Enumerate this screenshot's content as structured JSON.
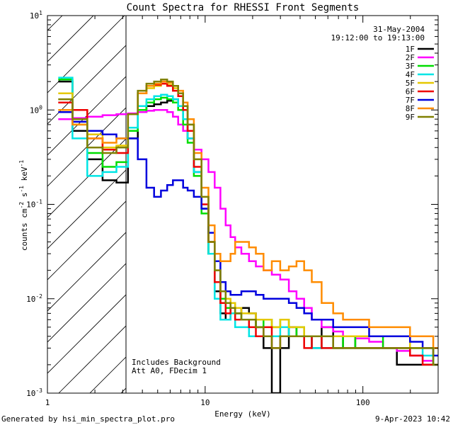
{
  "chart_data": {
    "type": "line",
    "title": "Count Spectra for RHESSI Front Segments",
    "xlabel": "Energy (keV)",
    "ylabel": "counts cm^-2 s^-1 keV^-1",
    "xscale": "log",
    "yscale": "log",
    "xlim": [
      1,
      300
    ],
    "ylim": [
      0.001,
      10
    ],
    "x_ticks": [
      {
        "v": 1,
        "label": "1"
      },
      {
        "v": 10,
        "label": "10"
      },
      {
        "v": 100,
        "label": "100"
      }
    ],
    "y_ticks": [
      {
        "v": 0.001,
        "base": "10",
        "exp": "-3"
      },
      {
        "v": 0.01,
        "base": "10",
        "exp": "-2"
      },
      {
        "v": 0.1,
        "base": "10",
        "exp": "-1"
      },
      {
        "v": 1,
        "base": "10",
        "exp": "0"
      },
      {
        "v": 10,
        "base": "10",
        "exp": "1"
      }
    ],
    "shaded_region_max_kev": 3,
    "energy_kev": [
      1.3,
      1.6,
      2.0,
      2.5,
      3.0,
      3.5,
      4.0,
      4.5,
      5.0,
      5.5,
      6.0,
      6.5,
      7.0,
      7.5,
      8.0,
      9.0,
      10.0,
      11.0,
      12.0,
      13.0,
      14.0,
      15.0,
      16.0,
      18.0,
      20.0,
      22.0,
      25.0,
      28.0,
      32.0,
      36.0,
      40.0,
      45.0,
      50.0,
      60.0,
      70.0,
      80.0,
      100.0,
      120.0,
      150.0,
      180.0,
      220.0,
      260.0,
      300.0
    ],
    "series": [
      {
        "name": "1F",
        "color": "#000000",
        "values": [
          2.0,
          0.6,
          0.3,
          0.18,
          0.17,
          0.5,
          0.95,
          1.1,
          1.15,
          1.2,
          1.25,
          1.3,
          1.1,
          0.8,
          0.5,
          0.22,
          0.09,
          0.03,
          0.012,
          0.007,
          0.006,
          0.008,
          0.007,
          0.008,
          0.007,
          0.005,
          0.003,
          0.001,
          0.003,
          0.005,
          0.004,
          0.004,
          0.003,
          0.005,
          0.003,
          0.004,
          0.003,
          0.003,
          0.003,
          0.002,
          0.002,
          0.002,
          0.002
        ]
      },
      {
        "name": "2F",
        "color": "#ff00ff",
        "values": [
          0.8,
          0.82,
          0.85,
          0.88,
          0.9,
          0.92,
          0.95,
          0.98,
          1.0,
          1.0,
          0.95,
          0.85,
          0.7,
          0.6,
          0.5,
          0.38,
          0.3,
          0.22,
          0.15,
          0.09,
          0.06,
          0.045,
          0.035,
          0.03,
          0.025,
          0.022,
          0.02,
          0.018,
          0.016,
          0.012,
          0.01,
          0.008,
          0.006,
          0.005,
          0.0045,
          0.004,
          0.0038,
          0.0035,
          0.003,
          0.0028,
          0.0025,
          0.0022,
          0.002
        ]
      },
      {
        "name": "3F",
        "color": "#00dd00",
        "values": [
          2.1,
          0.7,
          0.35,
          0.25,
          0.28,
          0.6,
          1.0,
          1.2,
          1.3,
          1.35,
          1.3,
          1.2,
          1.0,
          0.7,
          0.45,
          0.2,
          0.08,
          0.03,
          0.015,
          0.01,
          0.008,
          0.009,
          0.007,
          0.006,
          0.006,
          0.005,
          0.006,
          0.005,
          0.006,
          0.004,
          0.005,
          0.004,
          0.004,
          0.004,
          0.004,
          0.003,
          0.004,
          0.004,
          0.003,
          0.003,
          0.003,
          0.003,
          0.002
        ]
      },
      {
        "name": "4F",
        "color": "#00e5e5",
        "values": [
          2.2,
          0.5,
          0.2,
          0.22,
          0.25,
          0.65,
          1.1,
          1.3,
          1.4,
          1.45,
          1.4,
          1.3,
          1.1,
          0.8,
          0.5,
          0.22,
          0.09,
          0.03,
          0.01,
          0.006,
          0.006,
          0.007,
          0.005,
          0.005,
          0.004,
          0.004,
          0.004,
          0.004,
          0.005,
          0.004,
          0.004,
          0.004,
          0.003,
          0.003,
          0.003,
          0.003,
          0.003,
          0.003,
          0.003,
          0.003,
          0.003,
          0.0025,
          0.002
        ]
      },
      {
        "name": "5F",
        "color": "#e5c800",
        "values": [
          1.5,
          1.0,
          0.55,
          0.4,
          0.42,
          0.9,
          1.5,
          1.7,
          1.8,
          1.9,
          1.85,
          1.7,
          1.5,
          1.1,
          0.7,
          0.3,
          0.12,
          0.04,
          0.02,
          0.012,
          0.01,
          0.009,
          0.008,
          0.007,
          0.007,
          0.006,
          0.006,
          0.005,
          0.006,
          0.005,
          0.005,
          0.004,
          0.004,
          0.004,
          0.004,
          0.004,
          0.004,
          0.004,
          0.004,
          0.004,
          0.003,
          0.003,
          0.003
        ]
      },
      {
        "name": "6F",
        "color": "#ee0000",
        "values": [
          1.2,
          1.0,
          0.5,
          0.38,
          0.35,
          0.9,
          1.5,
          1.8,
          1.85,
          1.9,
          1.8,
          1.6,
          1.4,
          1.0,
          0.6,
          0.25,
          0.1,
          0.04,
          0.015,
          0.009,
          0.007,
          0.008,
          0.006,
          0.006,
          0.005,
          0.004,
          0.005,
          0.003,
          0.004,
          0.004,
          0.004,
          0.003,
          0.004,
          0.003,
          0.003,
          0.003,
          0.003,
          0.003,
          0.003,
          0.003,
          0.0025,
          0.002,
          0.002
        ]
      },
      {
        "name": "7F",
        "color": "#0000dd",
        "values": [
          0.95,
          0.75,
          0.6,
          0.55,
          0.5,
          0.5,
          0.3,
          0.15,
          0.12,
          0.14,
          0.16,
          0.18,
          0.18,
          0.15,
          0.14,
          0.12,
          0.09,
          0.05,
          0.025,
          0.015,
          0.012,
          0.011,
          0.011,
          0.012,
          0.012,
          0.011,
          0.01,
          0.01,
          0.01,
          0.009,
          0.008,
          0.007,
          0.006,
          0.006,
          0.005,
          0.005,
          0.005,
          0.004,
          0.004,
          0.004,
          0.0035,
          0.003,
          0.0025
        ]
      },
      {
        "name": "8F",
        "color": "#ff8c00",
        "values": [
          1.0,
          0.7,
          0.5,
          0.45,
          0.5,
          0.9,
          1.5,
          1.8,
          1.9,
          2.0,
          1.95,
          1.8,
          1.6,
          1.2,
          0.8,
          0.35,
          0.15,
          0.06,
          0.03,
          0.025,
          0.025,
          0.03,
          0.04,
          0.04,
          0.035,
          0.03,
          0.02,
          0.025,
          0.02,
          0.022,
          0.025,
          0.02,
          0.015,
          0.009,
          0.007,
          0.006,
          0.006,
          0.005,
          0.005,
          0.005,
          0.004,
          0.004,
          0.003
        ]
      },
      {
        "name": "9F",
        "color": "#808000",
        "values": [
          1.3,
          0.8,
          0.4,
          0.35,
          0.4,
          0.9,
          1.6,
          1.9,
          2.0,
          2.1,
          2.0,
          1.8,
          1.5,
          1.1,
          0.7,
          0.3,
          0.12,
          0.04,
          0.02,
          0.012,
          0.009,
          0.008,
          0.007,
          0.006,
          0.006,
          0.005,
          0.004,
          0.003,
          0.004,
          0.004,
          0.004,
          0.004,
          0.004,
          0.004,
          0.003,
          0.003,
          0.003,
          0.003,
          0.003,
          0.003,
          0.003,
          0.003,
          0.002
        ]
      }
    ]
  },
  "annotations": {
    "date": "31-May-2004",
    "time_range": "19:12:00 to 19:13:00",
    "note_line1": "Includes Background",
    "note_line2": "Att A0, FDecim 1"
  },
  "footer": {
    "left": "Generated by hsi_min_spectra_plot.pro",
    "right": "9-Apr-2023 10:42"
  }
}
